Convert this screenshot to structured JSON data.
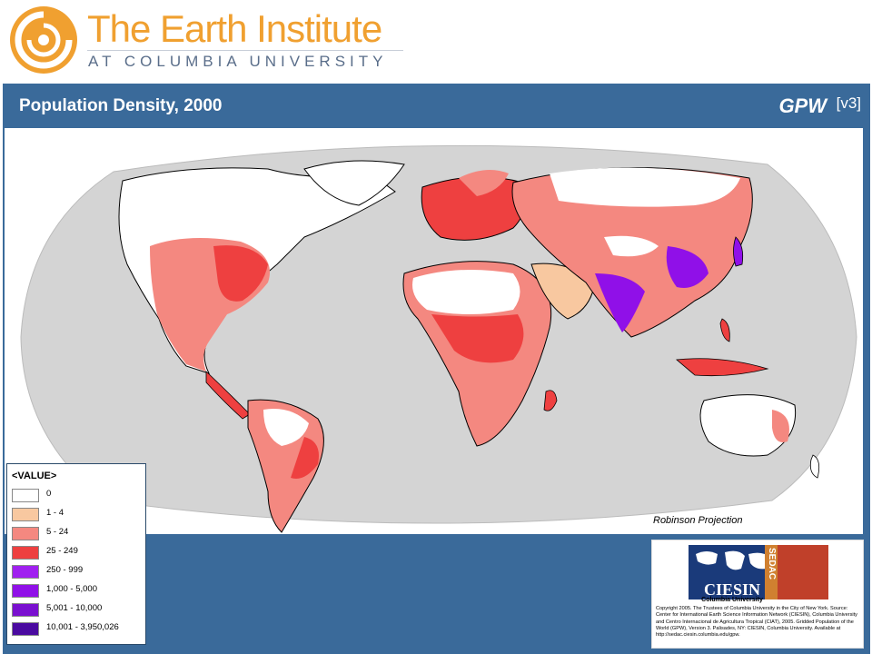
{
  "header": {
    "title": "The Earth Institute",
    "subtitle": "AT COLUMBIA UNIVERSITY"
  },
  "map": {
    "title": "Population Density, 2000",
    "product": "GPW",
    "version": "[v3]",
    "projection": "Robinson Projection",
    "ocean_color": "#d4d4d4",
    "land_outline_color": "#000000"
  },
  "legend": {
    "heading": "<VALUE>",
    "items": [
      {
        "label": "0",
        "color": "#ffffff"
      },
      {
        "label": "1 - 4",
        "color": "#f8c8a0"
      },
      {
        "label": "5 - 24",
        "color": "#f48880"
      },
      {
        "label": "25 - 249",
        "color": "#ee4040"
      },
      {
        "label": "250 - 999",
        "color": "#a020f0"
      },
      {
        "label": "1,000 - 5,000",
        "color": "#9010e8"
      },
      {
        "label": "5,001 - 10,000",
        "color": "#7a10d0"
      },
      {
        "label": "10,001 - 3,950,026",
        "color": "#4a0aa0"
      }
    ]
  },
  "credit": {
    "org": "CIESIN",
    "org_sub": "Columbia University",
    "program": "SEDAC",
    "copyright": "Copyright 2005. The Trustees of Columbia University in the City of New York. Source: Center for International Earth Science Information Network (CIESIN), Columbia University and Centro Internacional de Agricultura Tropical (CIAT), 2005. Gridded Population of the World (GPW), Version 3. Palisades, NY: CIESIN, Columbia University. Available at http://sedac.ciesin.columbia.edu/gpw."
  }
}
